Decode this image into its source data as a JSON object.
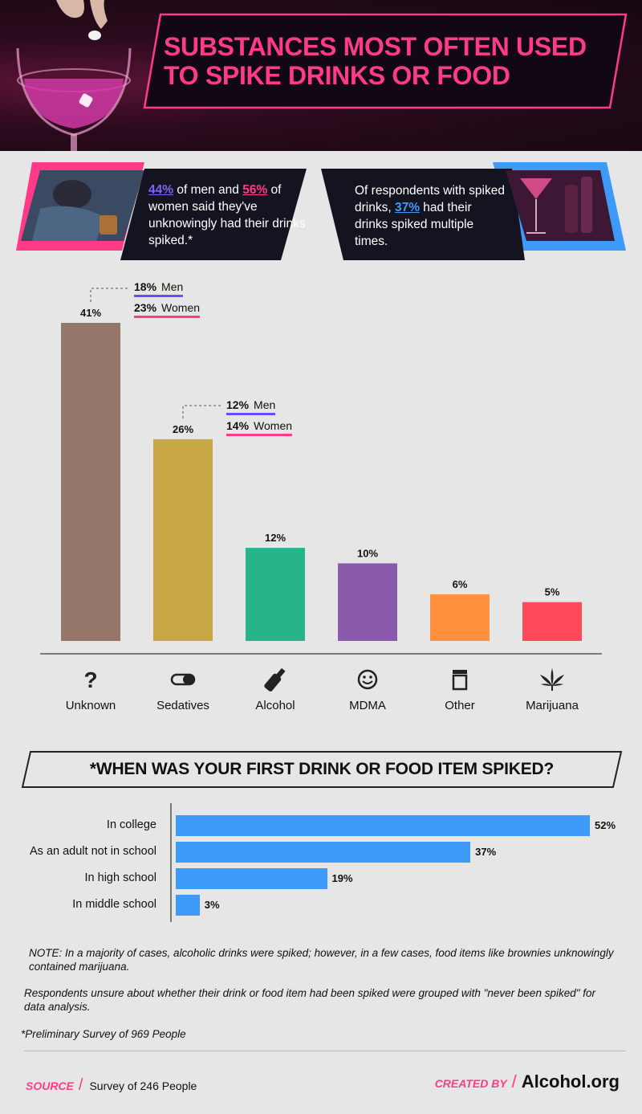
{
  "header": {
    "title": "SUBSTANCES MOST OFTEN USED TO SPIKE DRINKS OR FOOD",
    "accent_color": "#ff3b87"
  },
  "stats": {
    "left": {
      "men_pct": "44%",
      "text_1": " of men and ",
      "women_pct": "56%",
      "text_2": " of women said they've unknowingly had their drinks spiked.*"
    },
    "right": {
      "text_1": "Of respondents with spiked drinks, ",
      "pct": "37%",
      "text_2": " had their drinks spiked multiple times."
    }
  },
  "chart_data": [
    {
      "type": "bar",
      "categories": [
        "Unknown",
        "Sedatives",
        "Alcohol",
        "MDMA",
        "Other",
        "Marijuana"
      ],
      "values": [
        41,
        26,
        12,
        10,
        6,
        5
      ],
      "value_labels": [
        "41%",
        "26%",
        "12%",
        "10%",
        "6%",
        "5%"
      ],
      "colors": [
        "#94766a",
        "#c8a845",
        "#27b48b",
        "#8a5bab",
        "#ff913e",
        "#ff4a59"
      ],
      "icons": [
        "question-icon",
        "pill-icon",
        "bottle-icon",
        "smiley-icon",
        "jar-icon",
        "leaf-icon"
      ],
      "breakdowns": [
        {
          "category": "Unknown",
          "men": "18%",
          "men_label": "Men",
          "women": "23%",
          "women_label": "Women"
        },
        {
          "category": "Sedatives",
          "men": "12%",
          "men_label": "Men",
          "women": "14%",
          "women_label": "Women"
        }
      ],
      "ylim": [
        0,
        41
      ]
    },
    {
      "type": "bar",
      "orientation": "horizontal",
      "title": "*WHEN WAS YOUR FIRST DRINK OR FOOD ITEM SPIKED?",
      "categories": [
        "In college",
        "As an adult not in school",
        "In high school",
        "In middle school"
      ],
      "values": [
        52,
        37,
        19,
        3
      ],
      "value_labels": [
        "52%",
        "37%",
        "19%",
        "3%"
      ],
      "color": "#3d9af8",
      "xlim": [
        0,
        52
      ]
    }
  ],
  "notes": {
    "note_1": "NOTE: In a majority of cases, alcoholic drinks were spiked; however, in a few cases, food items like brownies unknowingly contained marijuana.",
    "note_2": "Respondents unsure about whether their drink or food item had been spiked were grouped with \"never been spiked\" for data analysis.",
    "note_3": "*Preliminary Survey of 969 People"
  },
  "footer": {
    "source_label": "SOURCE",
    "source_text": "Survey of 246 People",
    "created_label": "CREATED BY",
    "brand": "Alcohol.org"
  }
}
